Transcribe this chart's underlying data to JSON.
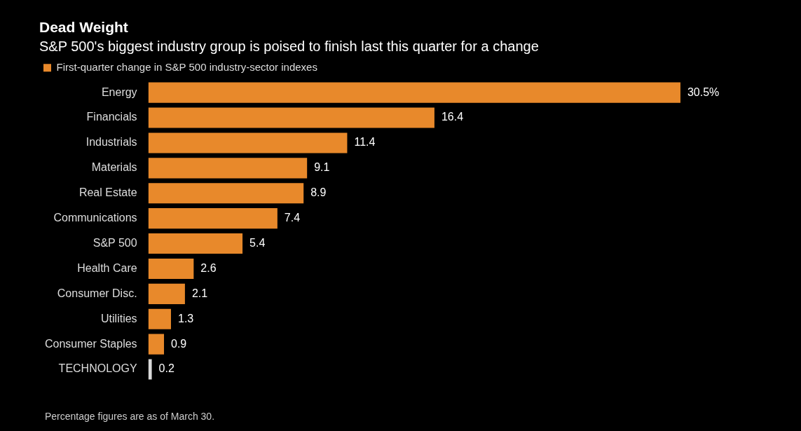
{
  "chart_data": {
    "type": "bar",
    "orientation": "horizontal",
    "title": "Dead Weight",
    "subtitle": "S&P 500's biggest industry group is poised to finish last this quarter for a change",
    "categories": [
      "Energy",
      "Financials",
      "Industrials",
      "Materials",
      "Real Estate",
      "Communications",
      "S&P 500",
      "Health Care",
      "Consumer Disc.",
      "Utilities",
      "Consumer Staples",
      "TECHNOLOGY"
    ],
    "series": [
      {
        "name": "First-quarter change in S&P 500 industry-sector indexes",
        "color": "#e8892b",
        "colors": [
          "#e8892b",
          "#e8892b",
          "#e8892b",
          "#e8892b",
          "#e8892b",
          "#e8892b",
          "#e8892b",
          "#e8892b",
          "#e8892b",
          "#e8892b",
          "#e8892b",
          "#d9d9d9"
        ],
        "values": [
          30.5,
          16.4,
          11.4,
          9.1,
          8.9,
          7.4,
          5.4,
          2.6,
          2.1,
          1.3,
          0.9,
          0.2
        ],
        "value_labels": [
          "30.5%",
          "16.4",
          "11.4",
          "9.1",
          "8.9",
          "7.4",
          "5.4",
          "2.6",
          "2.1",
          "1.3",
          "0.9",
          "0.2"
        ]
      }
    ],
    "legend": "top left",
    "annotations": [
      "Percentage figures are as of March 30."
    ]
  }
}
